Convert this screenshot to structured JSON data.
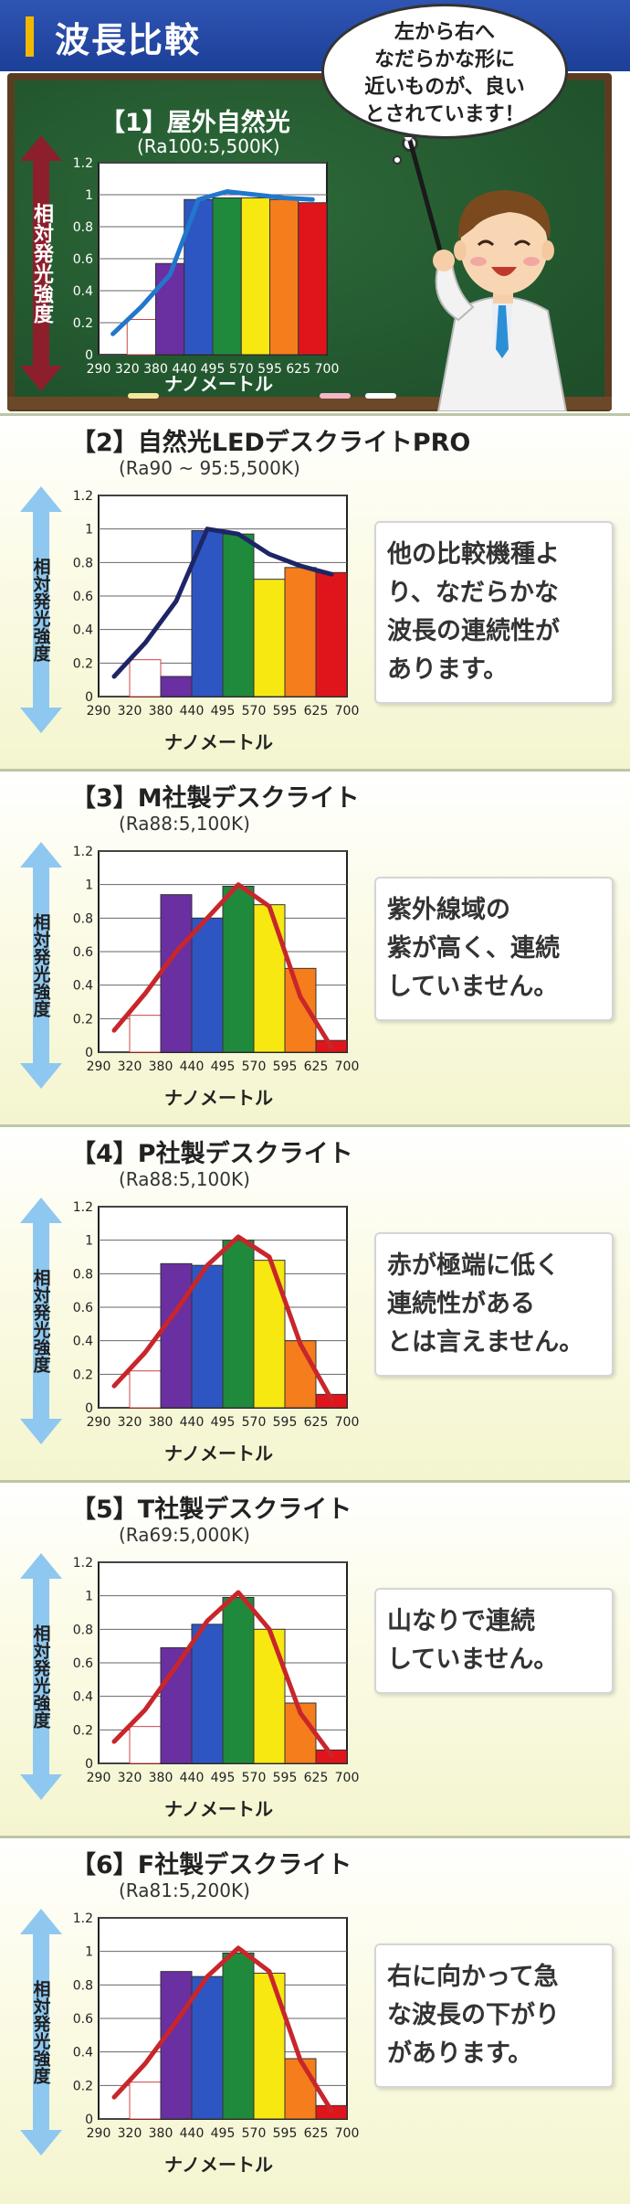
{
  "header": {
    "title": "波長比較"
  },
  "speech_bubble": {
    "lines": [
      "左から右へ",
      "なだらかな形に",
      "近いものが、良い",
      "とされています！"
    ]
  },
  "colors": {
    "purple": "#6a2fa0",
    "blue": "#2e56c2",
    "green": "#1f8a3c",
    "yellow": "#f7e812",
    "orange": "#f57d1c",
    "red": "#e0151b",
    "white_bar": "#ffffff",
    "line_blue": "#2277cc",
    "line_navy": "#1e2566",
    "line_red": "#c8262b"
  },
  "icons": {
    "arrow": "up-down-arrow-icon",
    "teacher": "teacher-pointer-illustration"
  },
  "chart_data": [
    {
      "type": "bar",
      "title": "【1】屋外自然光",
      "subtitle": "(Ra100:5,500K)",
      "ylabel": "相対発光強度",
      "xlabel": "ナノメートル",
      "ylim": [
        0,
        1.2
      ],
      "yticks": [
        "0",
        "0.2",
        "0.4",
        "0.6",
        "0.8",
        "1",
        "1.2"
      ],
      "x_ticks": [
        "290",
        "320",
        "380",
        "440",
        "495",
        "570",
        "595",
        "625",
        "700"
      ],
      "values": [
        0.22,
        0.57,
        0.97,
        0.98,
        0.98,
        0.97,
        0.95
      ],
      "bar_colors": [
        "white_bar",
        "purple",
        "blue",
        "green",
        "yellow",
        "orange",
        "red"
      ],
      "line_values": [
        0.13,
        0.3,
        0.5,
        0.97,
        1.02,
        1.0,
        0.98,
        0.97
      ],
      "line_color": "line_blue",
      "grid": true,
      "comment": []
    },
    {
      "type": "bar",
      "title": "【2】自然光LEDデスクライトPRO",
      "subtitle": "(Ra90 ~ 95:5,500K)",
      "ylabel": "相対発光強度",
      "xlabel": "ナノメートル",
      "ylim": [
        0,
        1.2
      ],
      "yticks": [
        "0",
        "0.2",
        "0.4",
        "0.6",
        "0.8",
        "1",
        "1.2"
      ],
      "x_ticks": [
        "290",
        "320",
        "380",
        "440",
        "495",
        "570",
        "595",
        "625",
        "700"
      ],
      "values": [
        0.22,
        0.12,
        0.99,
        0.97,
        0.7,
        0.77,
        0.74
      ],
      "bar_colors": [
        "white_bar",
        "purple",
        "blue",
        "green",
        "yellow",
        "orange",
        "red"
      ],
      "line_values": [
        0.12,
        0.32,
        0.57,
        1.0,
        0.97,
        0.85,
        0.78,
        0.73
      ],
      "line_color": "line_navy",
      "grid": true,
      "comment": [
        "他の比較機種よ",
        "り、なだらかな",
        "波長の連続性が",
        "あります。"
      ]
    },
    {
      "type": "bar",
      "title": "【3】M社製デスクライト",
      "subtitle": "(Ra88:5,100K)",
      "ylabel": "相対発光強度",
      "xlabel": "ナノメートル",
      "ylim": [
        0,
        1.2
      ],
      "yticks": [
        "0",
        "0.2",
        "0.4",
        "0.6",
        "0.8",
        "1",
        "1.2"
      ],
      "x_ticks": [
        "290",
        "320",
        "380",
        "440",
        "495",
        "570",
        "595",
        "625",
        "700"
      ],
      "values": [
        0.22,
        0.94,
        0.8,
        0.99,
        0.88,
        0.5,
        0.07
      ],
      "bar_colors": [
        "white_bar",
        "purple",
        "blue",
        "green",
        "yellow",
        "orange",
        "red"
      ],
      "line_values": [
        0.13,
        0.35,
        0.6,
        0.8,
        1.0,
        0.87,
        0.33,
        0.03
      ],
      "line_color": "line_red",
      "grid": true,
      "comment": [
        "紫外線域の",
        "紫が高く、連続",
        "していません。"
      ]
    },
    {
      "type": "bar",
      "title": "【4】P社製デスクライト",
      "subtitle": "(Ra88:5,100K)",
      "ylabel": "相対発光強度",
      "xlabel": "ナノメートル",
      "ylim": [
        0,
        1.2
      ],
      "yticks": [
        "0",
        "0.2",
        "0.4",
        "0.6",
        "0.8",
        "1",
        "1.2"
      ],
      "x_ticks": [
        "290",
        "320",
        "380",
        "440",
        "495",
        "570",
        "595",
        "625",
        "700"
      ],
      "values": [
        0.22,
        0.86,
        0.85,
        1.0,
        0.88,
        0.4,
        0.08
      ],
      "bar_colors": [
        "white_bar",
        "purple",
        "blue",
        "green",
        "yellow",
        "orange",
        "red"
      ],
      "line_values": [
        0.13,
        0.33,
        0.58,
        0.85,
        1.02,
        0.9,
        0.38,
        0.05
      ],
      "line_color": "line_red",
      "grid": true,
      "comment": [
        "赤が極端に低く",
        "連続性がある",
        "とは言えません。"
      ]
    },
    {
      "type": "bar",
      "title": "【5】T社製デスクライト",
      "subtitle": "(Ra69:5,000K)",
      "ylabel": "相対発光強度",
      "xlabel": "ナノメートル",
      "ylim": [
        0,
        1.2
      ],
      "yticks": [
        "0",
        "0.2",
        "0.4",
        "0.6",
        "0.8",
        "1",
        "1.2"
      ],
      "x_ticks": [
        "290",
        "320",
        "380",
        "440",
        "495",
        "570",
        "595",
        "625",
        "700"
      ],
      "values": [
        0.22,
        0.69,
        0.83,
        0.99,
        0.8,
        0.36,
        0.08
      ],
      "bar_colors": [
        "white_bar",
        "purple",
        "blue",
        "green",
        "yellow",
        "orange",
        "red"
      ],
      "line_values": [
        0.13,
        0.32,
        0.58,
        0.85,
        1.02,
        0.8,
        0.3,
        0.05
      ],
      "line_color": "line_red",
      "grid": true,
      "comment": [
        "山なりで連続",
        "していません。"
      ]
    },
    {
      "type": "bar",
      "title": "【6】F社製デスクライト",
      "subtitle": "(Ra81:5,200K)",
      "ylabel": "相対発光強度",
      "xlabel": "ナノメートル",
      "ylim": [
        0,
        1.2
      ],
      "yticks": [
        "0",
        "0.2",
        "0.4",
        "0.6",
        "0.8",
        "1",
        "1.2"
      ],
      "x_ticks": [
        "290",
        "320",
        "380",
        "440",
        "495",
        "570",
        "595",
        "625",
        "700"
      ],
      "values": [
        0.22,
        0.88,
        0.85,
        0.99,
        0.87,
        0.36,
        0.08
      ],
      "bar_colors": [
        "white_bar",
        "purple",
        "blue",
        "green",
        "yellow",
        "orange",
        "red"
      ],
      "line_values": [
        0.13,
        0.33,
        0.58,
        0.85,
        1.02,
        0.88,
        0.35,
        0.05
      ],
      "line_color": "line_red",
      "grid": true,
      "comment": [
        "右に向かって急",
        "な波長の下がり",
        "があります。"
      ]
    }
  ]
}
